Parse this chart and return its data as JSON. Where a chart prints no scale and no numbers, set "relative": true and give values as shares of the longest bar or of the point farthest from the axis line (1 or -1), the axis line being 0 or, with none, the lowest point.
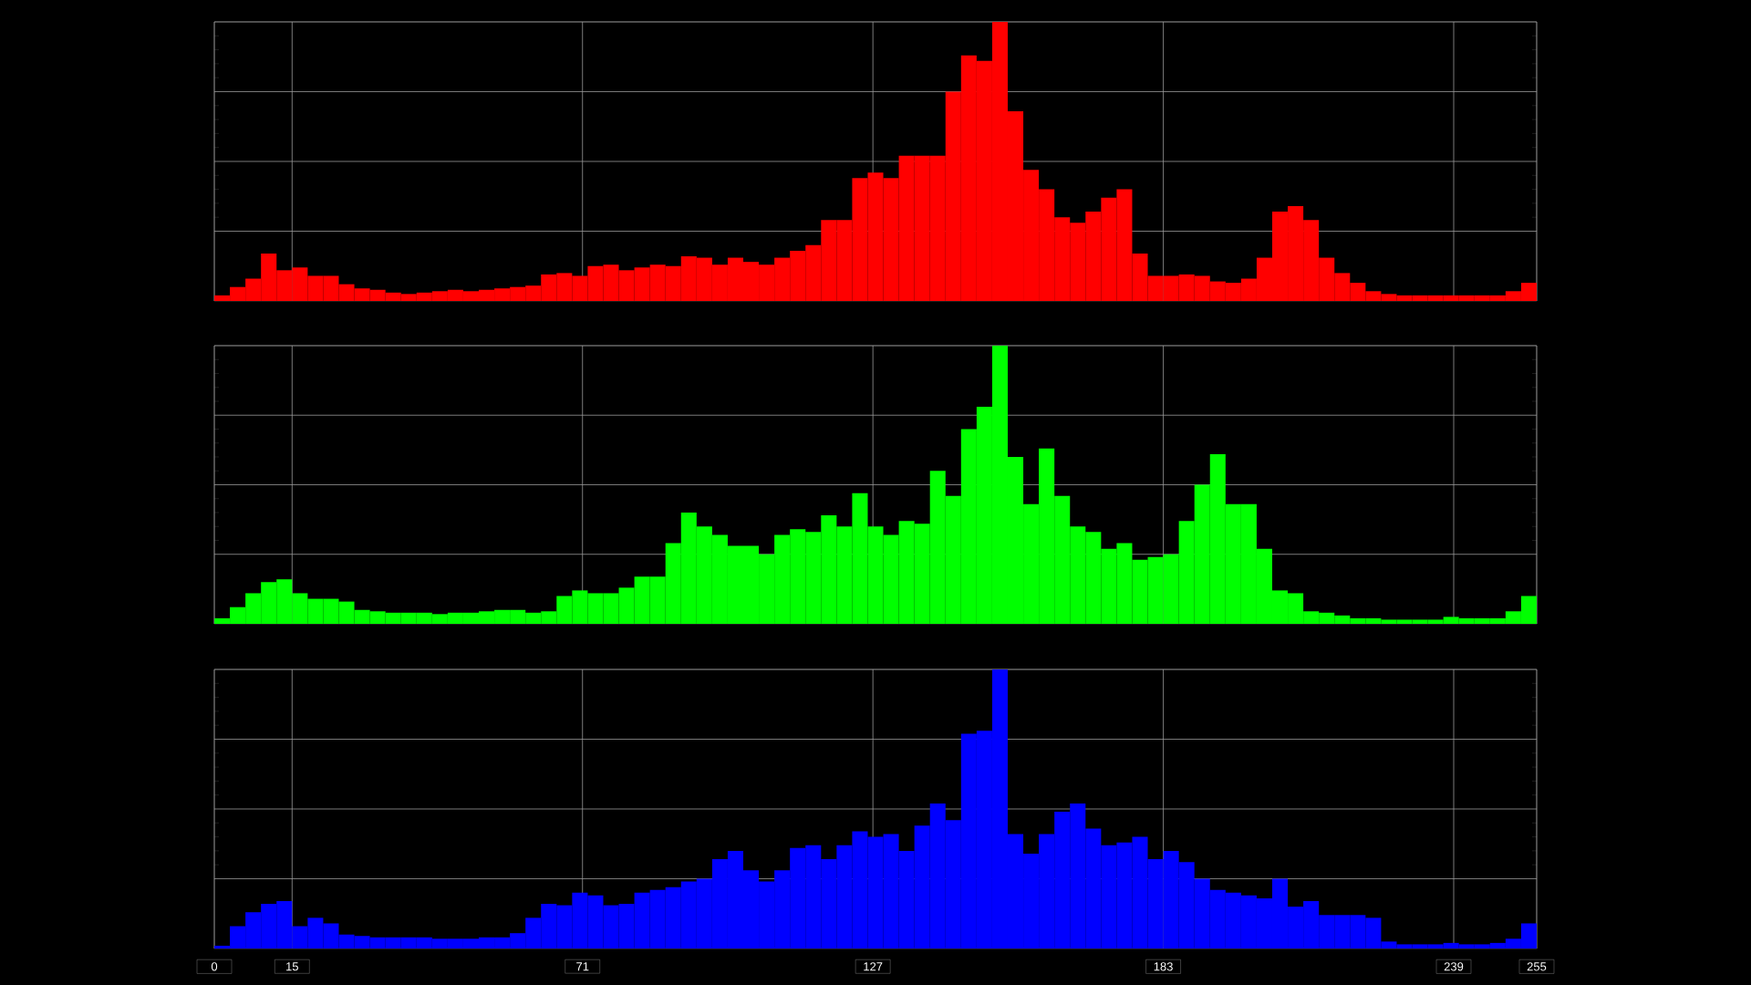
{
  "chart_data": [
    {
      "type": "bar",
      "relative": true,
      "color": "#ff0000",
      "xlim": [
        0,
        255
      ],
      "xticks": [
        0,
        15,
        71,
        127,
        183,
        239,
        255
      ],
      "grid": true,
      "tick_labels": false,
      "x": [
        1.5,
        4.5,
        7.5,
        10.5,
        13.5,
        16.5,
        19.5,
        22.5,
        25.5,
        28.5,
        31.5,
        34.5,
        37.5,
        40.5,
        43.5,
        46.5,
        49.5,
        52.5,
        55.5,
        58.5,
        61.5,
        64.5,
        67.5,
        70.5,
        73.5,
        76.5,
        79.5,
        82.5,
        85.5,
        88.5,
        91.5,
        94.5,
        97.5,
        100.5,
        103.5,
        106.5,
        109.5,
        112.5,
        115.5,
        118.5,
        121.5,
        124.5,
        127.5,
        130.5,
        133.5,
        136.5,
        139.5,
        142.5,
        145.5,
        148.5,
        151.5,
        154.5,
        157.5,
        160.5,
        163.5,
        166.5,
        169.5,
        172.5,
        175.5,
        178.5,
        181.5,
        184.5,
        187.5,
        190.5,
        193.5,
        196.5,
        199.5,
        202.5,
        205.5,
        208.5,
        211.5,
        214.5,
        217.5,
        220.5,
        223.5,
        226.5,
        229.5,
        232.5,
        235.5,
        238.5,
        241.5,
        244.5,
        247.5,
        250.5,
        253.5
      ],
      "values": [
        0.02,
        0.05,
        0.08,
        0.17,
        0.11,
        0.12,
        0.09,
        0.09,
        0.06,
        0.045,
        0.04,
        0.03,
        0.025,
        0.03,
        0.035,
        0.04,
        0.035,
        0.04,
        0.045,
        0.05,
        0.055,
        0.095,
        0.1,
        0.09,
        0.125,
        0.13,
        0.11,
        0.12,
        0.13,
        0.125,
        0.16,
        0.155,
        0.13,
        0.155,
        0.14,
        0.13,
        0.155,
        0.18,
        0.2,
        0.29,
        0.29,
        0.44,
        0.46,
        0.44,
        0.52,
        0.52,
        0.52,
        0.75,
        0.88,
        0.86,
        1,
        0.68,
        0.47,
        0.4,
        0.3,
        0.28,
        0.32,
        0.37,
        0.4,
        0.17,
        0.09,
        0.09,
        0.095,
        0.09,
        0.07,
        0.065,
        0.08,
        0.155,
        0.32,
        0.34,
        0.29,
        0.155,
        0.1,
        0.065,
        0.035,
        0.025,
        0.02,
        0.02,
        0.02,
        0.02,
        0.02,
        0.02,
        0.02,
        0.035,
        0.065
      ]
    },
    {
      "type": "bar",
      "relative": true,
      "color": "#00ff00",
      "xlim": [
        0,
        255
      ],
      "xticks": [
        0,
        15,
        71,
        127,
        183,
        239,
        255
      ],
      "grid": true,
      "tick_labels": false,
      "x": [
        1.5,
        4.5,
        7.5,
        10.5,
        13.5,
        16.5,
        19.5,
        22.5,
        25.5,
        28.5,
        31.5,
        34.5,
        37.5,
        40.5,
        43.5,
        46.5,
        49.5,
        52.5,
        55.5,
        58.5,
        61.5,
        64.5,
        67.5,
        70.5,
        73.5,
        76.5,
        79.5,
        82.5,
        85.5,
        88.5,
        91.5,
        94.5,
        97.5,
        100.5,
        103.5,
        106.5,
        109.5,
        112.5,
        115.5,
        118.5,
        121.5,
        124.5,
        127.5,
        130.5,
        133.5,
        136.5,
        139.5,
        142.5,
        145.5,
        148.5,
        151.5,
        154.5,
        157.5,
        160.5,
        163.5,
        166.5,
        169.5,
        172.5,
        175.5,
        178.5,
        181.5,
        184.5,
        187.5,
        190.5,
        193.5,
        196.5,
        199.5,
        202.5,
        205.5,
        208.5,
        211.5,
        214.5,
        217.5,
        220.5,
        223.5,
        226.5,
        229.5,
        232.5,
        235.5,
        238.5,
        241.5,
        244.5,
        247.5,
        250.5,
        253.5
      ],
      "values": [
        0.02,
        0.06,
        0.11,
        0.15,
        0.16,
        0.11,
        0.09,
        0.09,
        0.08,
        0.05,
        0.045,
        0.04,
        0.04,
        0.04,
        0.035,
        0.04,
        0.04,
        0.045,
        0.05,
        0.05,
        0.04,
        0.045,
        0.1,
        0.12,
        0.11,
        0.11,
        0.13,
        0.17,
        0.17,
        0.29,
        0.4,
        0.35,
        0.32,
        0.28,
        0.28,
        0.25,
        0.32,
        0.34,
        0.33,
        0.39,
        0.35,
        0.47,
        0.35,
        0.32,
        0.37,
        0.36,
        0.55,
        0.46,
        0.7,
        0.78,
        1,
        0.6,
        0.43,
        0.63,
        0.46,
        0.35,
        0.33,
        0.27,
        0.29,
        0.23,
        0.24,
        0.25,
        0.37,
        0.5,
        0.61,
        0.43,
        0.43,
        0.27,
        0.12,
        0.11,
        0.045,
        0.04,
        0.03,
        0.02,
        0.02,
        0.015,
        0.015,
        0.015,
        0.015,
        0.025,
        0.02,
        0.02,
        0.02,
        0.045,
        0.1
      ]
    },
    {
      "type": "bar",
      "relative": true,
      "color": "#0000ff",
      "xlim": [
        0,
        255
      ],
      "xticks": [
        0,
        15,
        71,
        127,
        183,
        239,
        255
      ],
      "grid": true,
      "tick_labels": "x",
      "x": [
        1.5,
        4.5,
        7.5,
        10.5,
        13.5,
        16.5,
        19.5,
        22.5,
        25.5,
        28.5,
        31.5,
        34.5,
        37.5,
        40.5,
        43.5,
        46.5,
        49.5,
        52.5,
        55.5,
        58.5,
        61.5,
        64.5,
        67.5,
        70.5,
        73.5,
        76.5,
        79.5,
        82.5,
        85.5,
        88.5,
        91.5,
        94.5,
        97.5,
        100.5,
        103.5,
        106.5,
        109.5,
        112.5,
        115.5,
        118.5,
        121.5,
        124.5,
        127.5,
        130.5,
        133.5,
        136.5,
        139.5,
        142.5,
        145.5,
        148.5,
        151.5,
        154.5,
        157.5,
        160.5,
        163.5,
        166.5,
        169.5,
        172.5,
        175.5,
        178.5,
        181.5,
        184.5,
        187.5,
        190.5,
        193.5,
        196.5,
        199.5,
        202.5,
        205.5,
        208.5,
        211.5,
        214.5,
        217.5,
        220.5,
        223.5,
        226.5,
        229.5,
        232.5,
        235.5,
        238.5,
        241.5,
        244.5,
        247.5,
        250.5,
        253.5
      ],
      "values": [
        0.01,
        0.08,
        0.13,
        0.16,
        0.17,
        0.08,
        0.11,
        0.09,
        0.05,
        0.045,
        0.04,
        0.04,
        0.04,
        0.04,
        0.035,
        0.035,
        0.035,
        0.04,
        0.04,
        0.055,
        0.11,
        0.16,
        0.155,
        0.2,
        0.19,
        0.155,
        0.16,
        0.2,
        0.21,
        0.22,
        0.24,
        0.25,
        0.32,
        0.35,
        0.28,
        0.24,
        0.28,
        0.36,
        0.37,
        0.32,
        0.37,
        0.42,
        0.4,
        0.41,
        0.35,
        0.44,
        0.52,
        0.46,
        0.77,
        0.78,
        1,
        0.41,
        0.34,
        0.41,
        0.49,
        0.52,
        0.43,
        0.37,
        0.38,
        0.4,
        0.32,
        0.35,
        0.31,
        0.25,
        0.21,
        0.2,
        0.19,
        0.18,
        0.25,
        0.15,
        0.17,
        0.12,
        0.12,
        0.12,
        0.11,
        0.025,
        0.015,
        0.015,
        0.015,
        0.02,
        0.015,
        0.015,
        0.02,
        0.035,
        0.09
      ]
    }
  ]
}
